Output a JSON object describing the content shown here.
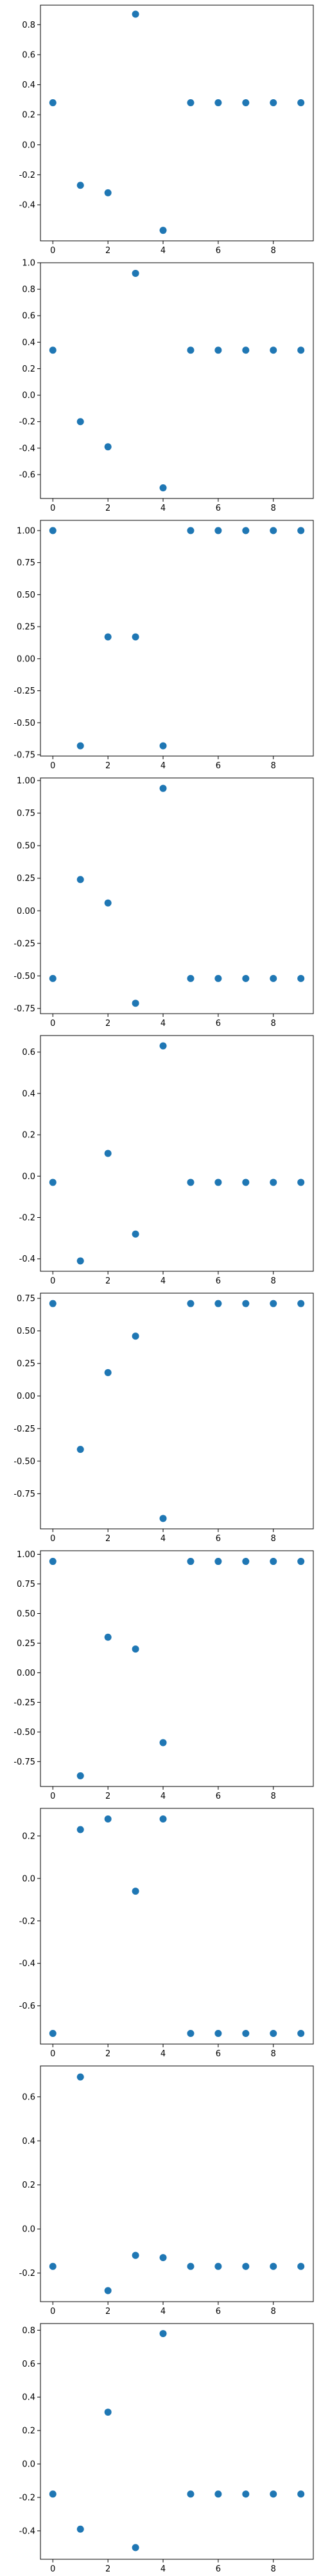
{
  "style": {
    "marker_color": "#1f77b4"
  },
  "chart_data": [
    {
      "type": "scatter",
      "x": [
        0,
        1,
        2,
        3,
        4,
        5,
        6,
        7,
        8,
        9
      ],
      "y": [
        0.28,
        -0.27,
        -0.32,
        0.87,
        -0.57,
        0.28,
        0.28,
        0.28,
        0.28,
        0.28
      ],
      "xlim": [
        -0.45,
        9.45
      ],
      "ylim": [
        -0.64,
        0.93
      ],
      "xticks": [
        0,
        2,
        4,
        6,
        8
      ],
      "xtick_labels": [
        "0",
        "2",
        "4",
        "6",
        "8"
      ],
      "yticks": [
        -0.4,
        -0.2,
        0.0,
        0.2,
        0.4,
        0.6,
        0.8
      ],
      "ytick_labels": [
        "-0.4",
        "-0.2",
        "0.0",
        "0.2",
        "0.4",
        "0.6",
        "0.8"
      ],
      "grid": false,
      "title": "",
      "xlabel": "",
      "ylabel": ""
    },
    {
      "type": "scatter",
      "x": [
        0,
        1,
        2,
        3,
        4,
        5,
        6,
        7,
        8,
        9
      ],
      "y": [
        0.34,
        -0.2,
        -0.39,
        0.92,
        -0.7,
        0.34,
        0.34,
        0.34,
        0.34,
        0.34
      ],
      "xlim": [
        -0.45,
        9.45
      ],
      "ylim": [
        -0.78,
        1.0
      ],
      "xticks": [
        0,
        2,
        4,
        6,
        8
      ],
      "xtick_labels": [
        "0",
        "2",
        "4",
        "6",
        "8"
      ],
      "yticks": [
        -0.6,
        -0.4,
        -0.2,
        0.0,
        0.2,
        0.4,
        0.6,
        0.8,
        1.0
      ],
      "ytick_labels": [
        "-0.6",
        "-0.4",
        "-0.2",
        "0.0",
        "0.2",
        "0.4",
        "0.6",
        "0.8",
        "1.0"
      ],
      "grid": false,
      "title": "",
      "xlabel": "",
      "ylabel": ""
    },
    {
      "type": "scatter",
      "x": [
        0,
        1,
        2,
        3,
        4,
        5,
        6,
        7,
        8,
        9
      ],
      "y": [
        1.0,
        -0.68,
        0.17,
        0.17,
        -0.68,
        1.0,
        1.0,
        1.0,
        1.0,
        1.0
      ],
      "xlim": [
        -0.45,
        9.45
      ],
      "ylim": [
        -0.76,
        1.08
      ],
      "xticks": [
        0,
        2,
        4,
        6,
        8
      ],
      "xtick_labels": [
        "0",
        "2",
        "4",
        "6",
        "8"
      ],
      "yticks": [
        -0.75,
        -0.5,
        -0.25,
        0.0,
        0.25,
        0.5,
        0.75,
        1.0
      ],
      "ytick_labels": [
        "-0.75",
        "-0.50",
        "-0.25",
        "0.00",
        "0.25",
        "0.50",
        "0.75",
        "1.00"
      ],
      "grid": false,
      "title": "",
      "xlabel": "",
      "ylabel": ""
    },
    {
      "type": "scatter",
      "x": [
        0,
        1,
        2,
        3,
        4,
        5,
        6,
        7,
        8,
        9
      ],
      "y": [
        -0.52,
        0.24,
        0.06,
        -0.71,
        0.94,
        -0.52,
        -0.52,
        -0.52,
        -0.52,
        -0.52
      ],
      "xlim": [
        -0.45,
        9.45
      ],
      "ylim": [
        -0.79,
        1.02
      ],
      "xticks": [
        0,
        2,
        4,
        6,
        8
      ],
      "xtick_labels": [
        "0",
        "2",
        "4",
        "6",
        "8"
      ],
      "yticks": [
        -0.75,
        -0.5,
        -0.25,
        0.0,
        0.25,
        0.5,
        0.75,
        1.0
      ],
      "ytick_labels": [
        "-0.75",
        "-0.50",
        "-0.25",
        "0.00",
        "0.25",
        "0.50",
        "0.75",
        "1.00"
      ],
      "grid": false,
      "title": "",
      "xlabel": "",
      "ylabel": ""
    },
    {
      "type": "scatter",
      "x": [
        0,
        1,
        2,
        3,
        4,
        5,
        6,
        7,
        8,
        9
      ],
      "y": [
        -0.03,
        -0.41,
        0.11,
        -0.28,
        0.63,
        -0.03,
        -0.03,
        -0.03,
        -0.03,
        -0.03
      ],
      "xlim": [
        -0.45,
        9.45
      ],
      "ylim": [
        -0.46,
        0.68
      ],
      "xticks": [
        0,
        2,
        4,
        6,
        8
      ],
      "xtick_labels": [
        "0",
        "2",
        "4",
        "6",
        "8"
      ],
      "yticks": [
        -0.4,
        -0.2,
        0.0,
        0.2,
        0.4,
        0.6
      ],
      "ytick_labels": [
        "-0.4",
        "-0.2",
        "0.0",
        "0.2",
        "0.4",
        "0.6"
      ],
      "grid": false,
      "title": "",
      "xlabel": "",
      "ylabel": ""
    },
    {
      "type": "scatter",
      "x": [
        0,
        1,
        2,
        3,
        4,
        5,
        6,
        7,
        8,
        9
      ],
      "y": [
        0.71,
        -0.41,
        0.18,
        0.46,
        -0.94,
        0.71,
        0.71,
        0.71,
        0.71,
        0.71
      ],
      "xlim": [
        -0.45,
        9.45
      ],
      "ylim": [
        -1.02,
        0.79
      ],
      "xticks": [
        0,
        2,
        4,
        6,
        8
      ],
      "xtick_labels": [
        "0",
        "2",
        "4",
        "6",
        "8"
      ],
      "yticks": [
        -0.75,
        -0.5,
        -0.25,
        0.0,
        0.25,
        0.5,
        0.75
      ],
      "ytick_labels": [
        "-0.75",
        "-0.50",
        "-0.25",
        "0.00",
        "0.25",
        "0.50",
        "0.75"
      ],
      "grid": false,
      "title": "",
      "xlabel": "",
      "ylabel": ""
    },
    {
      "type": "scatter",
      "x": [
        0,
        1,
        2,
        3,
        4,
        5,
        6,
        7,
        8,
        9
      ],
      "y": [
        0.94,
        -0.87,
        0.3,
        0.2,
        -0.59,
        0.94,
        0.94,
        0.94,
        0.94,
        0.94
      ],
      "xlim": [
        -0.45,
        9.45
      ],
      "ylim": [
        -0.96,
        1.03
      ],
      "xticks": [
        0,
        2,
        4,
        6,
        8
      ],
      "xtick_labels": [
        "0",
        "2",
        "4",
        "6",
        "8"
      ],
      "yticks": [
        -0.75,
        -0.5,
        -0.25,
        0.0,
        0.25,
        0.5,
        0.75,
        1.0
      ],
      "ytick_labels": [
        "-0.75",
        "-0.50",
        "-0.25",
        "0.00",
        "0.25",
        "0.50",
        "0.75",
        "1.00"
      ],
      "grid": false,
      "title": "",
      "xlabel": "",
      "ylabel": ""
    },
    {
      "type": "scatter",
      "x": [
        0,
        1,
        2,
        3,
        4,
        5,
        6,
        7,
        8,
        9
      ],
      "y": [
        -0.73,
        0.23,
        0.28,
        -0.06,
        0.28,
        -0.73,
        -0.73,
        -0.73,
        -0.73,
        -0.73
      ],
      "xlim": [
        -0.45,
        9.45
      ],
      "ylim": [
        -0.78,
        0.33
      ],
      "xticks": [
        0,
        2,
        4,
        6,
        8
      ],
      "xtick_labels": [
        "0",
        "2",
        "4",
        "6",
        "8"
      ],
      "yticks": [
        -0.6,
        -0.4,
        -0.2,
        0.0,
        0.2
      ],
      "ytick_labels": [
        "-0.6",
        "-0.4",
        "-0.2",
        "0.0",
        "0.2"
      ],
      "grid": false,
      "title": "",
      "xlabel": "",
      "ylabel": ""
    },
    {
      "type": "scatter",
      "x": [
        0,
        1,
        2,
        3,
        4,
        5,
        6,
        7,
        8,
        9
      ],
      "y": [
        -0.17,
        0.69,
        -0.28,
        -0.12,
        -0.13,
        -0.17,
        -0.17,
        -0.17,
        -0.17,
        -0.17
      ],
      "xlim": [
        -0.45,
        9.45
      ],
      "ylim": [
        -0.33,
        0.74
      ],
      "xticks": [
        0,
        2,
        4,
        6,
        8
      ],
      "xtick_labels": [
        "0",
        "2",
        "4",
        "6",
        "8"
      ],
      "yticks": [
        -0.2,
        0.0,
        0.2,
        0.4,
        0.6
      ],
      "ytick_labels": [
        "-0.2",
        "0.0",
        "0.2",
        "0.4",
        "0.6"
      ],
      "grid": false,
      "title": "",
      "xlabel": "",
      "ylabel": ""
    },
    {
      "type": "scatter",
      "x": [
        0,
        1,
        2,
        3,
        4,
        5,
        6,
        7,
        8,
        9
      ],
      "y": [
        -0.18,
        -0.39,
        0.31,
        -0.5,
        0.78,
        -0.18,
        -0.18,
        -0.18,
        -0.18,
        -0.18
      ],
      "xlim": [
        -0.45,
        9.45
      ],
      "ylim": [
        -0.57,
        0.84
      ],
      "xticks": [
        0,
        2,
        4,
        6,
        8
      ],
      "xtick_labels": [
        "0",
        "2",
        "4",
        "6",
        "8"
      ],
      "yticks": [
        -0.4,
        -0.2,
        0.0,
        0.2,
        0.4,
        0.6,
        0.8
      ],
      "ytick_labels": [
        "-0.4",
        "-0.2",
        "0.0",
        "0.2",
        "0.4",
        "0.6",
        "0.8"
      ],
      "grid": false,
      "title": "",
      "xlabel": "",
      "ylabel": ""
    }
  ]
}
